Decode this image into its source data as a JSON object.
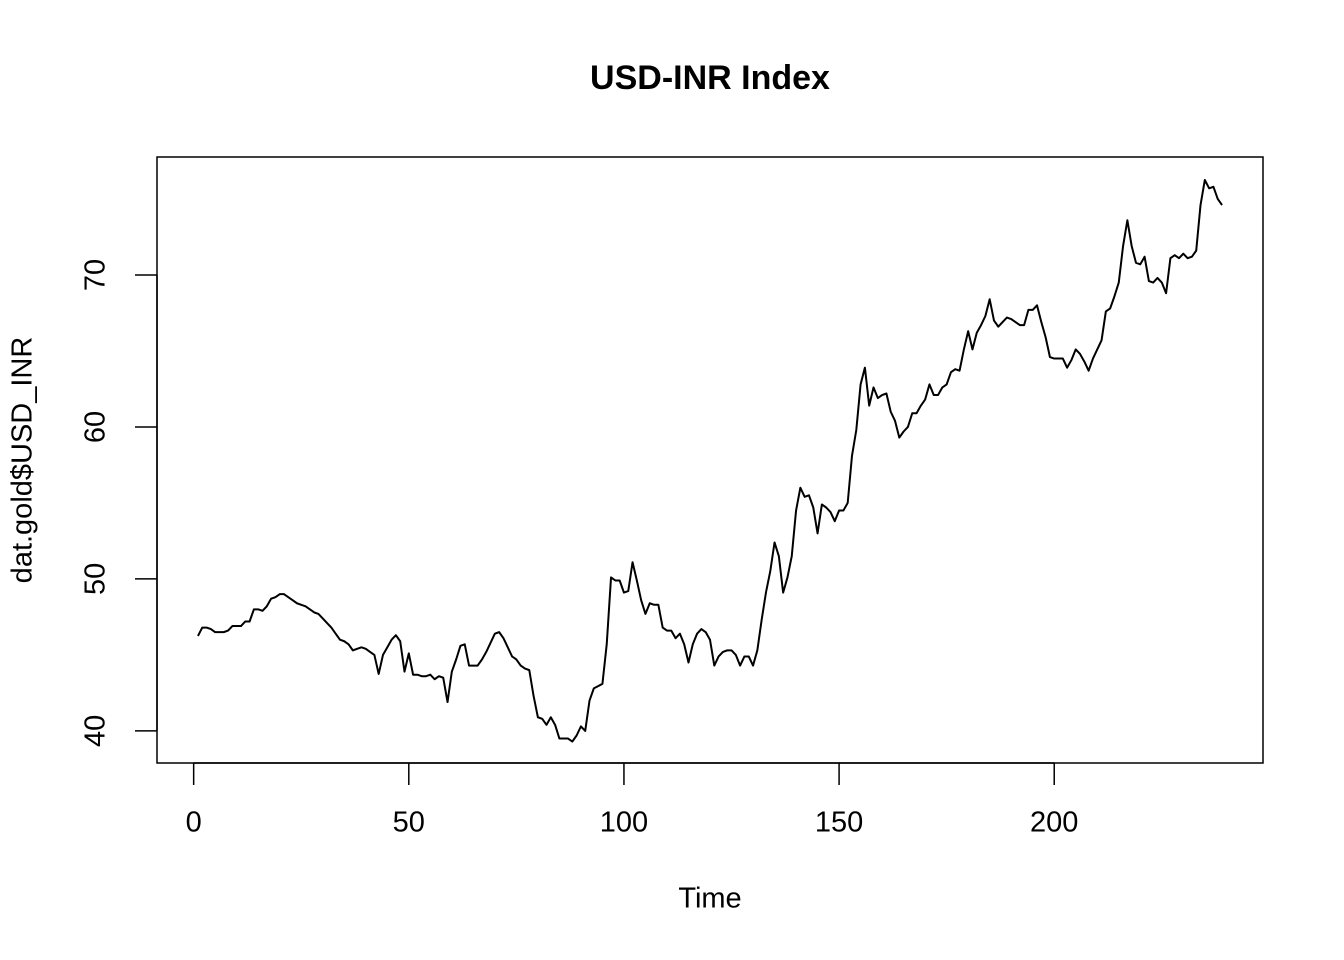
{
  "chart_data": {
    "type": "line",
    "title": "USD-INR Index",
    "xlabel": "Time",
    "ylabel": "dat.gold$USD_INR",
    "x": [
      1,
      2,
      3,
      4,
      5,
      6,
      7,
      8,
      9,
      10,
      11,
      12,
      13,
      14,
      15,
      16,
      17,
      18,
      19,
      20,
      21,
      22,
      23,
      24,
      25,
      26,
      27,
      28,
      29,
      30,
      31,
      32,
      33,
      34,
      35,
      36,
      37,
      38,
      39,
      40,
      41,
      42,
      43,
      44,
      45,
      46,
      47,
      48,
      49,
      50,
      51,
      52,
      53,
      54,
      55,
      56,
      57,
      58,
      59,
      60,
      61,
      62,
      63,
      64,
      65,
      66,
      67,
      68,
      69,
      70,
      71,
      72,
      73,
      74,
      75,
      76,
      77,
      78,
      79,
      80,
      81,
      82,
      83,
      84,
      85,
      86,
      87,
      88,
      89,
      90,
      91,
      92,
      93,
      94,
      95,
      96,
      97,
      98,
      99,
      100,
      101,
      102,
      103,
      104,
      105,
      106,
      107,
      108,
      109,
      110,
      111,
      112,
      113,
      114,
      115,
      116,
      117,
      118,
      119,
      120,
      121,
      122,
      123,
      124,
      125,
      126,
      127,
      128,
      129,
      130,
      131,
      132,
      133,
      134,
      135,
      136,
      137,
      138,
      139,
      140,
      141,
      142,
      143,
      144,
      145,
      146,
      147,
      148,
      149,
      150,
      151,
      152,
      153,
      154,
      155,
      156,
      157,
      158,
      159,
      160,
      161,
      162,
      163,
      164,
      165,
      166,
      167,
      168,
      169,
      170,
      171,
      172,
      173,
      174,
      175,
      176,
      177,
      178,
      179,
      180,
      181,
      182,
      183,
      184,
      185,
      186,
      187,
      188,
      189,
      190,
      191,
      192,
      193,
      194,
      195,
      196,
      197,
      198,
      199,
      200,
      201,
      202,
      203,
      204,
      205,
      206,
      207,
      208,
      209,
      210,
      211,
      212,
      213,
      214,
      215,
      216,
      217,
      218,
      219,
      220,
      221,
      222,
      223,
      224,
      225,
      226,
      227,
      228,
      229,
      230,
      231,
      232,
      233,
      234,
      235,
      236,
      237,
      238,
      239
    ],
    "series": [
      {
        "name": "USD_INR",
        "color": "#000000",
        "values": [
          46.25,
          46.8,
          46.8,
          46.7,
          46.5,
          46.5,
          46.5,
          46.6,
          46.9,
          46.9,
          46.9,
          47.2,
          47.2,
          48.0,
          48.0,
          47.9,
          48.2,
          48.7,
          48.8,
          49.0,
          49.0,
          48.8,
          48.6,
          48.4,
          48.3,
          48.2,
          48.0,
          47.8,
          47.7,
          47.4,
          47.1,
          46.8,
          46.4,
          46.0,
          45.9,
          45.7,
          45.3,
          45.4,
          45.5,
          45.4,
          45.2,
          45.0,
          43.75,
          45.0,
          45.5,
          46.0,
          46.3,
          45.9,
          43.9,
          45.1,
          43.7,
          43.7,
          43.6,
          43.6,
          43.7,
          43.4,
          43.6,
          43.5,
          41.9,
          43.9,
          44.7,
          45.6,
          45.7,
          44.3,
          44.3,
          44.3,
          44.7,
          45.2,
          45.8,
          46.4,
          46.5,
          46.1,
          45.5,
          44.9,
          44.7,
          44.3,
          44.1,
          44.0,
          42.3,
          40.9,
          40.8,
          40.4,
          40.9,
          40.4,
          39.5,
          39.5,
          39.5,
          39.3,
          39.7,
          40.3,
          40.0,
          42.0,
          42.8,
          42.95,
          43.1,
          45.7,
          50.1,
          49.9,
          49.9,
          49.1,
          49.2,
          51.1,
          49.9,
          48.6,
          47.7,
          48.4,
          48.3,
          48.3,
          46.8,
          46.6,
          46.6,
          46.1,
          46.4,
          45.7,
          44.5,
          45.7,
          46.4,
          46.7,
          46.5,
          46.0,
          44.3,
          44.9,
          45.2,
          45.3,
          45.3,
          45.0,
          44.3,
          44.9,
          44.9,
          44.3,
          45.3,
          47.3,
          49.1,
          50.5,
          52.4,
          51.5,
          49.1,
          50.1,
          51.5,
          54.5,
          56.0,
          55.4,
          55.5,
          54.7,
          53.0,
          54.9,
          54.7,
          54.4,
          53.8,
          54.5,
          54.5,
          55.0,
          58.1,
          59.8,
          62.8,
          63.9,
          61.4,
          62.6,
          61.9,
          62.1,
          62.2,
          61.0,
          60.4,
          59.3,
          59.7,
          60.0,
          60.9,
          60.9,
          61.4,
          61.8,
          62.8,
          62.1,
          62.1,
          62.6,
          62.8,
          63.6,
          63.8,
          63.7,
          65.1,
          66.3,
          65.1,
          66.2,
          66.7,
          67.3,
          68.4,
          67.0,
          66.6,
          66.9,
          67.2,
          67.1,
          66.9,
          66.7,
          66.7,
          67.7,
          67.7,
          68.0,
          66.9,
          65.9,
          64.6,
          64.5,
          64.5,
          64.5,
          63.9,
          64.4,
          65.1,
          64.8,
          64.3,
          63.7,
          64.5,
          65.1,
          65.7,
          67.6,
          67.8,
          68.6,
          69.5,
          71.9,
          73.6,
          71.9,
          70.8,
          70.7,
          71.2,
          69.6,
          69.5,
          69.8,
          69.5,
          68.8,
          71.1,
          71.3,
          71.1,
          71.4,
          71.1,
          71.2,
          71.6,
          74.6,
          76.25,
          75.7,
          75.8,
          75.0,
          74.6
        ]
      }
    ],
    "xlim": [
      -8.52,
      248.52
    ],
    "ylim": [
      37.89,
      77.76
    ],
    "xticks": [
      0,
      50,
      100,
      150,
      200
    ],
    "yticks": [
      40,
      50,
      60,
      70
    ],
    "grid": false
  }
}
